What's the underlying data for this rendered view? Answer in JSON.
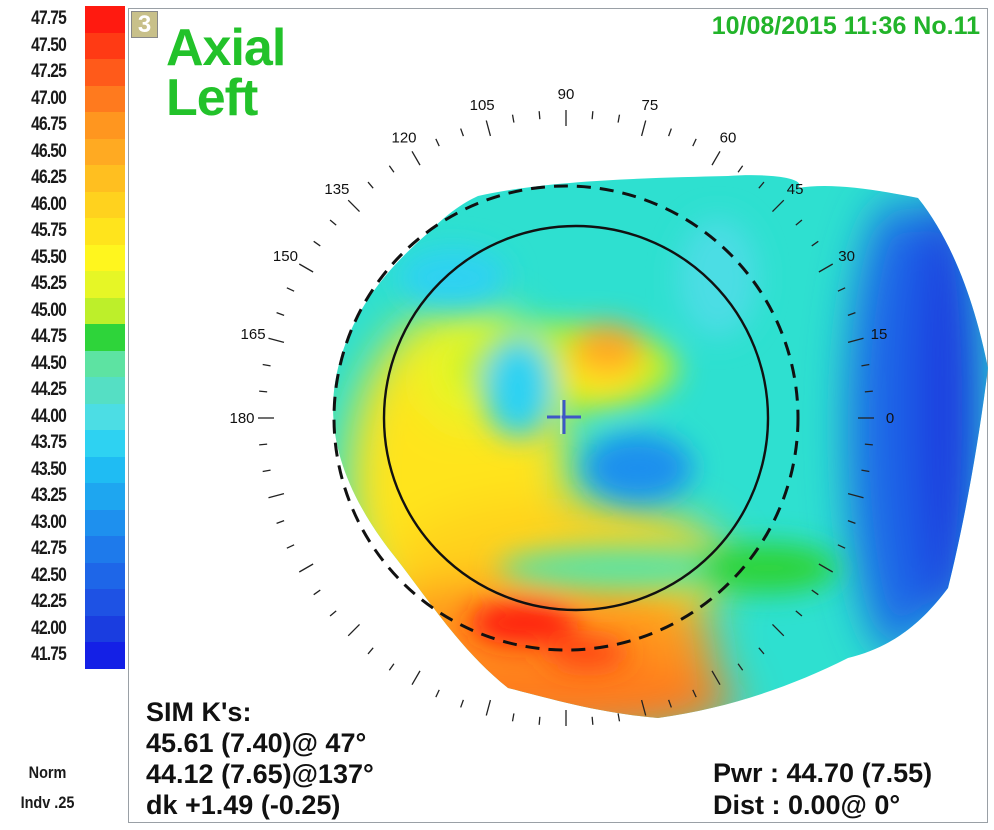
{
  "scale": {
    "labels": [
      "47.75",
      "47.50",
      "47.25",
      "47.00",
      "46.75",
      "46.50",
      "46.25",
      "46.00",
      "45.75",
      "45.50",
      "45.25",
      "45.00",
      "44.75",
      "44.50",
      "44.25",
      "44.00",
      "43.75",
      "43.50",
      "43.25",
      "43.00",
      "42.75",
      "42.50",
      "42.25",
      "42.00",
      "41.75"
    ],
    "colors": [
      "#ff1a10",
      "#ff3a14",
      "#ff5a1a",
      "#ff7a1e",
      "#ff961f",
      "#ffaa22",
      "#ffbf20",
      "#ffd21e",
      "#ffe41c",
      "#fff61e",
      "#e6f626",
      "#bdef2a",
      "#2ed43a",
      "#5de3a2",
      "#55dfc4",
      "#4cdde4",
      "#2ed2f2",
      "#1fbcf3",
      "#1ea6f0",
      "#1e90ee",
      "#1e7aeb",
      "#1e66e8",
      "#1e52e4",
      "#1a3de0",
      "#1420e6"
    ],
    "footer_line1": "Norm",
    "footer_line2": "Indv .25"
  },
  "header": {
    "badge": "3",
    "title_line1": "Axial",
    "title_line2": "Left",
    "datestamp": "10/08/2015 11:36 No.11"
  },
  "ring_labels": [
    "0",
    "15",
    "30",
    "45",
    "60",
    "75",
    "90",
    "105",
    "120",
    "135",
    "150",
    "165",
    "180"
  ],
  "simk": {
    "title": "SIM K's:",
    "line1": "45.61 (7.40)@ 47°",
    "line2": "44.12 (7.65)@137°",
    "line3": "dk +1.49 (-0.25)"
  },
  "readout": {
    "pwr": "Pwr :  44.70 (7.55)",
    "dist": "Dist :  0.00@  0°"
  }
}
